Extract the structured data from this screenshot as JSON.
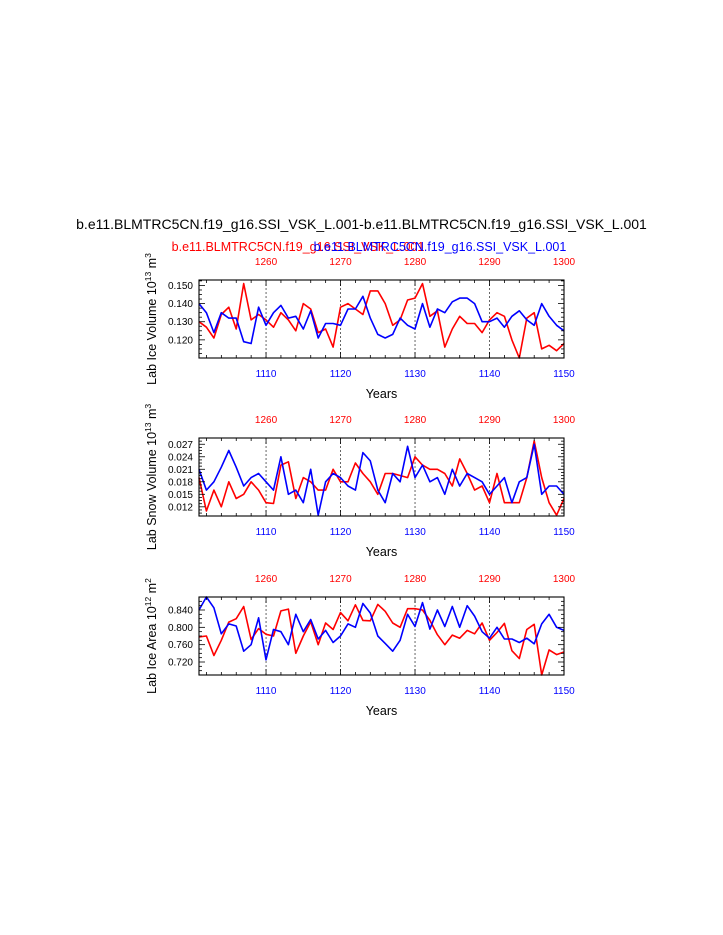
{
  "header": {
    "title": "b.e11.BLMTRC5CN.f19_g16.SSI_VSK_L.001-b.e11.BLMTRC5CN.f19_g16.SSI_VSK_L.001",
    "subtitle_red": "b.e11.BLMTRC5CN.f19_g16.SSI_VSK_L.001",
    "subtitle_blue": "b.e11.BLMTRC5CN.f19_g16.SSI_VSK_L.001"
  },
  "colors": {
    "series_a": "#ff0000",
    "series_b": "#0000ff",
    "axis": "#000000"
  },
  "chart_data": [
    {
      "type": "line",
      "ylabel": "Lab Ice Volume 10^13 m^3",
      "ylabel_main": "Lab Ice Volume 10",
      "ylabel_exp1": "13",
      "ylabel_mid": " m",
      "ylabel_exp2": "3",
      "xlabel": "Years",
      "bottom_ticks": [
        "1110",
        "1120",
        "1130",
        "1140",
        "1150"
      ],
      "top_ticks": [
        "1260",
        "1270",
        "1280",
        "1290",
        "1300"
      ],
      "y_ticks": [
        "0.120",
        "0.130",
        "0.140",
        "0.150"
      ],
      "ylim": [
        0.11,
        0.153
      ],
      "xlim": [
        1101,
        1150
      ],
      "grid": "dashed vertical at major ticks",
      "series": [
        {
          "name": "b.e11.BLMTRC5CN.f19_g16.SSI_VSK_L.001",
          "color": "red",
          "x_start": 1251,
          "values": [
            0.13,
            0.127,
            0.121,
            0.134,
            0.138,
            0.126,
            0.151,
            0.131,
            0.134,
            0.131,
            0.127,
            0.135,
            0.131,
            0.125,
            0.14,
            0.137,
            0.124,
            0.126,
            0.116,
            0.138,
            0.14,
            0.137,
            0.134,
            0.147,
            0.147,
            0.14,
            0.128,
            0.131,
            0.142,
            0.143,
            0.151,
            0.133,
            0.136,
            0.116,
            0.126,
            0.133,
            0.129,
            0.129,
            0.124,
            0.131,
            0.135,
            0.133,
            0.12,
            0.11,
            0.132,
            0.135,
            0.115,
            0.117,
            0.114,
            0.118
          ]
        },
        {
          "name": "b.e11.BLMTRC5CN.f19_g16.SSI_VSK_L.001",
          "color": "blue",
          "x_start": 1101,
          "values": [
            0.14,
            0.135,
            0.124,
            0.135,
            0.132,
            0.132,
            0.119,
            0.118,
            0.138,
            0.128,
            0.135,
            0.139,
            0.132,
            0.133,
            0.126,
            0.136,
            0.121,
            0.129,
            0.129,
            0.128,
            0.137,
            0.137,
            0.144,
            0.132,
            0.123,
            0.121,
            0.123,
            0.132,
            0.128,
            0.126,
            0.14,
            0.127,
            0.137,
            0.135,
            0.141,
            0.143,
            0.143,
            0.14,
            0.13,
            0.13,
            0.132,
            0.127,
            0.133,
            0.136,
            0.131,
            0.128,
            0.14,
            0.133,
            0.128,
            0.125
          ]
        }
      ]
    },
    {
      "type": "line",
      "ylabel": "Lab Snow Volume 10^13 m^3",
      "ylabel_main": "Lab Snow Volume 10",
      "ylabel_exp1": "13",
      "ylabel_mid": " m",
      "ylabel_exp2": "3",
      "xlabel": "Years",
      "bottom_ticks": [
        "1110",
        "1120",
        "1130",
        "1140",
        "1150"
      ],
      "top_ticks": [
        "1260",
        "1270",
        "1280",
        "1290",
        "1300"
      ],
      "y_ticks": [
        "0.012",
        "0.015",
        "0.018",
        "0.021",
        "0.024",
        "0.027"
      ],
      "ylim": [
        0.0098,
        0.0285
      ],
      "xlim": [
        1101,
        1150
      ],
      "grid": "dashed vertical at major ticks",
      "series": [
        {
          "name": "b.e11.BLMTRC5CN.f19_g16.SSI_VSK_L.001",
          "color": "red",
          "x_start": 1251,
          "values": [
            0.019,
            0.011,
            0.016,
            0.012,
            0.018,
            0.014,
            0.015,
            0.018,
            0.016,
            0.013,
            0.0128,
            0.022,
            0.0228,
            0.014,
            0.019,
            0.018,
            0.016,
            0.016,
            0.021,
            0.018,
            0.018,
            0.0225,
            0.02,
            0.018,
            0.015,
            0.02,
            0.02,
            0.0195,
            0.019,
            0.024,
            0.022,
            0.021,
            0.021,
            0.02,
            0.017,
            0.0235,
            0.02,
            0.016,
            0.017,
            0.013,
            0.02,
            0.013,
            0.013,
            0.013,
            0.019,
            0.0278,
            0.019,
            0.013,
            0.01,
            0.014
          ]
        },
        {
          "name": "b.e11.BLMTRC5CN.f19_g16.SSI_VSK_L.001",
          "color": "blue",
          "x_start": 1101,
          "values": [
            0.021,
            0.016,
            0.018,
            0.0215,
            0.0255,
            0.0215,
            0.017,
            0.019,
            0.02,
            0.018,
            0.016,
            0.024,
            0.015,
            0.016,
            0.013,
            0.021,
            0.01,
            0.018,
            0.02,
            0.019,
            0.017,
            0.016,
            0.025,
            0.023,
            0.016,
            0.013,
            0.02,
            0.018,
            0.0265,
            0.019,
            0.022,
            0.018,
            0.019,
            0.015,
            0.021,
            0.017,
            0.02,
            0.019,
            0.018,
            0.015,
            0.017,
            0.019,
            0.013,
            0.018,
            0.019,
            0.027,
            0.015,
            0.017,
            0.017,
            0.015
          ]
        }
      ]
    },
    {
      "type": "line",
      "ylabel": "Lab Ice Area 10^12 m^2",
      "ylabel_main": "Lab Ice Area 10",
      "ylabel_exp1": "12",
      "ylabel_mid": " m",
      "ylabel_exp2": "2",
      "xlabel": "Years",
      "bottom_ticks": [
        "1110",
        "1120",
        "1130",
        "1140",
        "1150"
      ],
      "top_ticks": [
        "1260",
        "1270",
        "1280",
        "1290",
        "1300"
      ],
      "y_ticks": [
        "0.720",
        "0.760",
        "0.800",
        "0.840"
      ],
      "ylim": [
        0.69,
        0.87
      ],
      "xlim": [
        1101,
        1150
      ],
      "grid": "dashed vertical at major ticks",
      "series": [
        {
          "name": "b.e11.BLMTRC5CN.f19_g16.SSI_VSK_L.001",
          "color": "red",
          "x_start": 1251,
          "values": [
            0.778,
            0.78,
            0.735,
            0.77,
            0.812,
            0.82,
            0.848,
            0.772,
            0.797,
            0.784,
            0.78,
            0.838,
            0.842,
            0.74,
            0.78,
            0.813,
            0.76,
            0.81,
            0.795,
            0.834,
            0.815,
            0.852,
            0.816,
            0.815,
            0.853,
            0.837,
            0.81,
            0.8,
            0.843,
            0.843,
            0.84,
            0.816,
            0.783,
            0.76,
            0.782,
            0.775,
            0.793,
            0.785,
            0.81,
            0.77,
            0.788,
            0.809,
            0.746,
            0.728,
            0.795,
            0.807,
            0.69,
            0.748,
            0.737,
            0.743
          ]
        },
        {
          "name": "b.e11.BLMTRC5CN.f19_g16.SSI_VSK_L.001",
          "color": "blue",
          "x_start": 1101,
          "values": [
            0.84,
            0.87,
            0.845,
            0.785,
            0.808,
            0.803,
            0.745,
            0.76,
            0.822,
            0.725,
            0.795,
            0.79,
            0.76,
            0.83,
            0.79,
            0.818,
            0.773,
            0.793,
            0.765,
            0.78,
            0.808,
            0.8,
            0.855,
            0.833,
            0.78,
            0.763,
            0.745,
            0.77,
            0.83,
            0.802,
            0.857,
            0.796,
            0.84,
            0.802,
            0.848,
            0.8,
            0.85,
            0.826,
            0.79,
            0.775,
            0.8,
            0.773,
            0.773,
            0.765,
            0.775,
            0.762,
            0.808,
            0.83,
            0.8,
            0.793
          ]
        }
      ]
    }
  ]
}
